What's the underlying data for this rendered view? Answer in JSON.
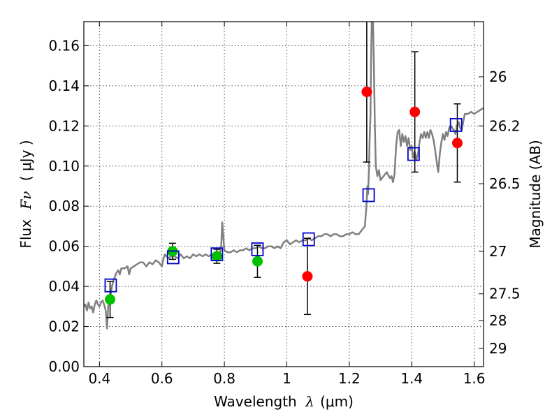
{
  "chart_data": {
    "type": "scatter",
    "xlabel": "Wavelength",
    "xlabel_symbol": "λ",
    "xlabel_unit": "(μm)",
    "ylabel": "Flux",
    "ylabel_symbol": "Fν",
    "ylabel_unit": "( μJy )",
    "y2label": "Magnitude (AB)",
    "xlim": [
      0.35,
      1.63
    ],
    "ylim": [
      0.0,
      0.172
    ],
    "grid": true,
    "xticks": [
      0.4,
      0.6,
      0.8,
      1.0,
      1.2,
      1.4,
      1.6
    ],
    "xtick_labels": [
      "0.4",
      "0.6",
      "0.8",
      "1",
      "1.2",
      "1.4",
      "1.6"
    ],
    "yticks": [
      0.0,
      0.02,
      0.04,
      0.06,
      0.08,
      0.1,
      0.12,
      0.14,
      0.16
    ],
    "ytick_labels": [
      "0.00",
      "0.02",
      "0.04",
      "0.06",
      "0.08",
      "0.10",
      "0.12",
      "0.14",
      "0.16"
    ],
    "y2ticks": [
      {
        "flux": 0.1445,
        "label": "26"
      },
      {
        "flux": 0.12,
        "label": "26.2"
      },
      {
        "flux": 0.0912,
        "label": "26.5"
      },
      {
        "flux": 0.0575,
        "label": "27"
      },
      {
        "flux": 0.0363,
        "label": "27.5"
      },
      {
        "flux": 0.0229,
        "label": "28"
      },
      {
        "flux": 0.0091,
        "label": "29"
      }
    ],
    "colors": {
      "template": "#808080",
      "green_points": "#00c000",
      "red_points": "#ff0000",
      "model_boxes": "#0000cc",
      "error_bars": "#000000",
      "grid": "#555555"
    },
    "series": [
      {
        "name": "",
        "kind": "line",
        "color": "#808080",
        "points": [
          [
            0.35,
            0.03
          ],
          [
            0.355,
            0.031
          ],
          [
            0.36,
            0.028
          ],
          [
            0.365,
            0.032
          ],
          [
            0.37,
            0.029
          ],
          [
            0.375,
            0.03
          ],
          [
            0.38,
            0.027
          ],
          [
            0.385,
            0.031
          ],
          [
            0.39,
            0.033
          ],
          [
            0.395,
            0.031
          ],
          [
            0.4,
            0.03
          ],
          [
            0.405,
            0.032
          ],
          [
            0.41,
            0.033
          ],
          [
            0.415,
            0.031
          ],
          [
            0.42,
            0.028
          ],
          [
            0.424,
            0.019
          ],
          [
            0.428,
            0.03
          ],
          [
            0.432,
            0.033
          ],
          [
            0.436,
            0.036
          ],
          [
            0.44,
            0.04
          ],
          [
            0.445,
            0.043
          ],
          [
            0.45,
            0.045
          ],
          [
            0.455,
            0.047
          ],
          [
            0.46,
            0.048
          ],
          [
            0.465,
            0.046
          ],
          [
            0.47,
            0.049
          ],
          [
            0.48,
            0.049
          ],
          [
            0.49,
            0.05
          ],
          [
            0.495,
            0.046
          ],
          [
            0.5,
            0.049
          ],
          [
            0.51,
            0.05
          ],
          [
            0.52,
            0.051
          ],
          [
            0.53,
            0.052
          ],
          [
            0.54,
            0.052
          ],
          [
            0.55,
            0.05
          ],
          [
            0.56,
            0.052
          ],
          [
            0.57,
            0.051
          ],
          [
            0.58,
            0.053
          ],
          [
            0.59,
            0.052
          ],
          [
            0.6,
            0.05
          ],
          [
            0.605,
            0.054
          ],
          [
            0.61,
            0.056
          ],
          [
            0.62,
            0.054
          ],
          [
            0.63,
            0.055
          ],
          [
            0.64,
            0.055
          ],
          [
            0.65,
            0.054
          ],
          [
            0.66,
            0.056
          ],
          [
            0.67,
            0.054
          ],
          [
            0.68,
            0.055
          ],
          [
            0.69,
            0.054
          ],
          [
            0.7,
            0.056
          ],
          [
            0.71,
            0.055
          ],
          [
            0.72,
            0.056
          ],
          [
            0.73,
            0.055
          ],
          [
            0.74,
            0.056
          ],
          [
            0.75,
            0.055
          ],
          [
            0.76,
            0.056
          ],
          [
            0.77,
            0.055
          ],
          [
            0.78,
            0.057
          ],
          [
            0.785,
            0.056
          ],
          [
            0.79,
            0.06
          ],
          [
            0.793,
            0.072
          ],
          [
            0.796,
            0.066
          ],
          [
            0.8,
            0.058
          ],
          [
            0.81,
            0.057
          ],
          [
            0.82,
            0.057
          ],
          [
            0.83,
            0.058
          ],
          [
            0.84,
            0.057
          ],
          [
            0.85,
            0.058
          ],
          [
            0.86,
            0.058
          ],
          [
            0.87,
            0.059
          ],
          [
            0.88,
            0.058
          ],
          [
            0.89,
            0.059
          ],
          [
            0.9,
            0.059
          ],
          [
            0.91,
            0.06
          ],
          [
            0.92,
            0.059
          ],
          [
            0.93,
            0.059
          ],
          [
            0.94,
            0.06
          ],
          [
            0.95,
            0.06
          ],
          [
            0.96,
            0.059
          ],
          [
            0.97,
            0.06
          ],
          [
            0.98,
            0.059
          ],
          [
            0.99,
            0.062
          ],
          [
            1.0,
            0.063
          ],
          [
            1.01,
            0.061
          ],
          [
            1.02,
            0.062
          ],
          [
            1.03,
            0.063
          ],
          [
            1.04,
            0.062
          ],
          [
            1.05,
            0.063
          ],
          [
            1.06,
            0.063
          ],
          [
            1.07,
            0.064
          ],
          [
            1.08,
            0.063
          ],
          [
            1.09,
            0.064
          ],
          [
            1.1,
            0.065
          ],
          [
            1.11,
            0.065
          ],
          [
            1.12,
            0.066
          ],
          [
            1.13,
            0.066
          ],
          [
            1.14,
            0.065
          ],
          [
            1.15,
            0.066
          ],
          [
            1.16,
            0.066
          ],
          [
            1.17,
            0.065
          ],
          [
            1.18,
            0.065
          ],
          [
            1.19,
            0.066
          ],
          [
            1.2,
            0.066
          ],
          [
            1.21,
            0.067
          ],
          [
            1.22,
            0.066
          ],
          [
            1.23,
            0.066
          ],
          [
            1.24,
            0.068
          ],
          [
            1.25,
            0.07
          ],
          [
            1.255,
            0.08
          ],
          [
            1.258,
            0.09
          ],
          [
            1.26,
            0.086
          ],
          [
            1.263,
            0.098
          ],
          [
            1.265,
            0.112
          ],
          [
            1.268,
            0.125
          ],
          [
            1.27,
            0.155
          ],
          [
            1.272,
            0.172
          ],
          [
            1.276,
            0.172
          ],
          [
            1.279,
            0.15
          ],
          [
            1.282,
            0.12
          ],
          [
            1.285,
            0.1
          ],
          [
            1.29,
            0.095
          ],
          [
            1.295,
            0.098
          ],
          [
            1.3,
            0.093
          ],
          [
            1.31,
            0.095
          ],
          [
            1.32,
            0.097
          ],
          [
            1.33,
            0.094
          ],
          [
            1.335,
            0.095
          ],
          [
            1.34,
            0.092
          ],
          [
            1.345,
            0.096
          ],
          [
            1.35,
            0.11
          ],
          [
            1.355,
            0.117
          ],
          [
            1.36,
            0.118
          ],
          [
            1.365,
            0.11
          ],
          [
            1.37,
            0.116
          ],
          [
            1.375,
            0.112
          ],
          [
            1.38,
            0.115
          ],
          [
            1.385,
            0.11
          ],
          [
            1.39,
            0.114
          ],
          [
            1.395,
            0.108
          ],
          [
            1.4,
            0.11
          ],
          [
            1.405,
            0.104
          ],
          [
            1.41,
            0.107
          ],
          [
            1.415,
            0.103
          ],
          [
            1.42,
            0.106
          ],
          [
            1.425,
            0.112
          ],
          [
            1.43,
            0.116
          ],
          [
            1.435,
            0.114
          ],
          [
            1.44,
            0.117
          ],
          [
            1.445,
            0.114
          ],
          [
            1.45,
            0.117
          ],
          [
            1.455,
            0.114
          ],
          [
            1.46,
            0.118
          ],
          [
            1.465,
            0.116
          ],
          [
            1.47,
            0.113
          ],
          [
            1.475,
            0.108
          ],
          [
            1.48,
            0.102
          ],
          [
            1.485,
            0.097
          ],
          [
            1.49,
            0.106
          ],
          [
            1.495,
            0.112
          ],
          [
            1.5,
            0.116
          ],
          [
            1.505,
            0.113
          ],
          [
            1.51,
            0.117
          ],
          [
            1.515,
            0.115
          ],
          [
            1.52,
            0.119
          ],
          [
            1.525,
            0.12
          ],
          [
            1.53,
            0.119
          ],
          [
            1.535,
            0.118
          ],
          [
            1.54,
            0.116
          ],
          [
            1.545,
            0.12
          ],
          [
            1.55,
            0.122
          ],
          [
            1.555,
            0.119
          ],
          [
            1.56,
            0.118
          ],
          [
            1.57,
            0.126
          ],
          [
            1.58,
            0.126
          ],
          [
            1.59,
            0.127
          ],
          [
            1.6,
            0.126
          ],
          [
            1.61,
            0.127
          ],
          [
            1.62,
            0.128
          ],
          [
            1.63,
            0.129
          ]
        ]
      },
      {
        "name": "",
        "kind": "points",
        "color": "#00c000",
        "points": [
          {
            "x": 0.434,
            "y": 0.0335,
            "err": 0.009
          },
          {
            "x": 0.634,
            "y": 0.0575,
            "err": 0.004
          },
          {
            "x": 0.776,
            "y": 0.055,
            "err": 0.0035
          },
          {
            "x": 0.906,
            "y": 0.0525,
            "err": 0.008
          }
        ]
      },
      {
        "name": "",
        "kind": "points",
        "color": "#ff0000",
        "points": [
          {
            "x": 1.066,
            "y": 0.045,
            "err": 0.019
          },
          {
            "x": 1.256,
            "y": 0.137,
            "err": 0.035
          },
          {
            "x": 1.41,
            "y": 0.127,
            "err": 0.03
          },
          {
            "x": 1.546,
            "y": 0.1115,
            "err": 0.0195
          }
        ]
      },
      {
        "name": "",
        "kind": "boxes",
        "color": "#0000cc",
        "points": [
          {
            "x": 0.436,
            "y": 0.0405
          },
          {
            "x": 0.636,
            "y": 0.0545
          },
          {
            "x": 0.776,
            "y": 0.056
          },
          {
            "x": 0.906,
            "y": 0.0585
          },
          {
            "x": 1.07,
            "y": 0.0635
          },
          {
            "x": 1.262,
            "y": 0.0855
          },
          {
            "x": 1.406,
            "y": 0.106
          },
          {
            "x": 1.542,
            "y": 0.1205
          }
        ]
      }
    ]
  }
}
